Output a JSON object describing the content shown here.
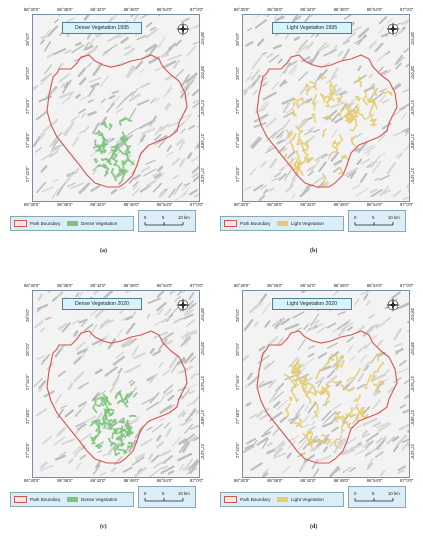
{
  "colors": {
    "park_boundary": "#d9534f",
    "dense_vegetation": "#7cc47c",
    "light_vegetation": "#e6cc6a",
    "legend_bg": "#dbeef7",
    "title_bg": "#d9f3fb"
  },
  "icons": {
    "north_arrow": "compass-rose-icon"
  },
  "panels": [
    {
      "caption": "(a)",
      "title": "Dense Vegetation 1995",
      "vegetation_type": "dense",
      "x_ticks": [
        "86°30'0\"",
        "86°36'0\"",
        "86°42'0\"",
        "86°48'0\"",
        "86°54'0\"",
        "87°0'0\""
      ],
      "y_ticks_left": [
        "28°6'0\"",
        "28°0'0\"",
        "27°54'0\"",
        "27°48'0\"",
        "27°42'0\""
      ],
      "y_ticks_right": [
        "28°6'0\"",
        "28°0'0\"",
        "27°54'0\"",
        "27°48'0\"",
        "27°42'0\""
      ],
      "legend": {
        "boundary_label": "Park Boundary",
        "vegetation_label": "Dense Vegetation"
      },
      "scale": {
        "labels": [
          "0",
          "5",
          "10 km"
        ]
      }
    },
    {
      "caption": "(b)",
      "title": "Light Vegetation 1995",
      "vegetation_type": "light",
      "x_ticks": [
        "86°30'0\"",
        "86°36'0\"",
        "86°42'0\"",
        "86°48'0\"",
        "86°54'0\"",
        "87°0'0\""
      ],
      "y_ticks_left": [
        "28°6'0\"",
        "28°0'0\"",
        "27°54'0\"",
        "27°48'0\"",
        "27°42'0\""
      ],
      "y_ticks_right": [
        "28°6'0\"",
        "28°0'0\"",
        "27°54'0\"",
        "27°48'0\"",
        "27°42'0\""
      ],
      "legend": {
        "boundary_label": "Park Boundary",
        "vegetation_label": "Light Vegetation"
      },
      "scale": {
        "labels": [
          "0",
          "5",
          "10 km"
        ]
      }
    },
    {
      "caption": "(c)",
      "title": "Dense Vegetation 2020",
      "vegetation_type": "dense",
      "x_ticks": [
        "86°30'0\"",
        "86°36'0\"",
        "86°42'0\"",
        "86°48'0\"",
        "86°54'0\"",
        "87°0'0\""
      ],
      "y_ticks_left": [
        "28°6'0\"",
        "28°0'0\"",
        "27°54'0\"",
        "27°48'0\"",
        "27°42'0\""
      ],
      "y_ticks_right": [
        "28°6'0\"",
        "28°0'0\"",
        "27°54'0\"",
        "27°48'0\"",
        "27°42'0\""
      ],
      "legend": {
        "boundary_label": "Park Boundary",
        "vegetation_label": "Dense Vegetation"
      },
      "scale": {
        "labels": [
          "0",
          "5",
          "10 km"
        ]
      }
    },
    {
      "caption": "(d)",
      "title": "Light Vegetation 2020",
      "vegetation_type": "light",
      "x_ticks": [
        "86°30'0\"",
        "86°36'0\"",
        "86°42'0\"",
        "86°48'0\"",
        "86°54'0\"",
        "87°0'0\""
      ],
      "y_ticks_left": [
        "28°6'0\"",
        "28°0'0\"",
        "27°54'0\"",
        "27°48'0\"",
        "27°42'0\""
      ],
      "y_ticks_right": [
        "28°6'0\"",
        "28°0'0\"",
        "27°54'0\"",
        "27°48'0\"",
        "27°42'0\""
      ],
      "legend": {
        "boundary_label": "Park Boundary",
        "vegetation_label": "Light Vegetation"
      },
      "scale": {
        "labels": [
          "0",
          "5",
          "10 km"
        ]
      }
    }
  ]
}
